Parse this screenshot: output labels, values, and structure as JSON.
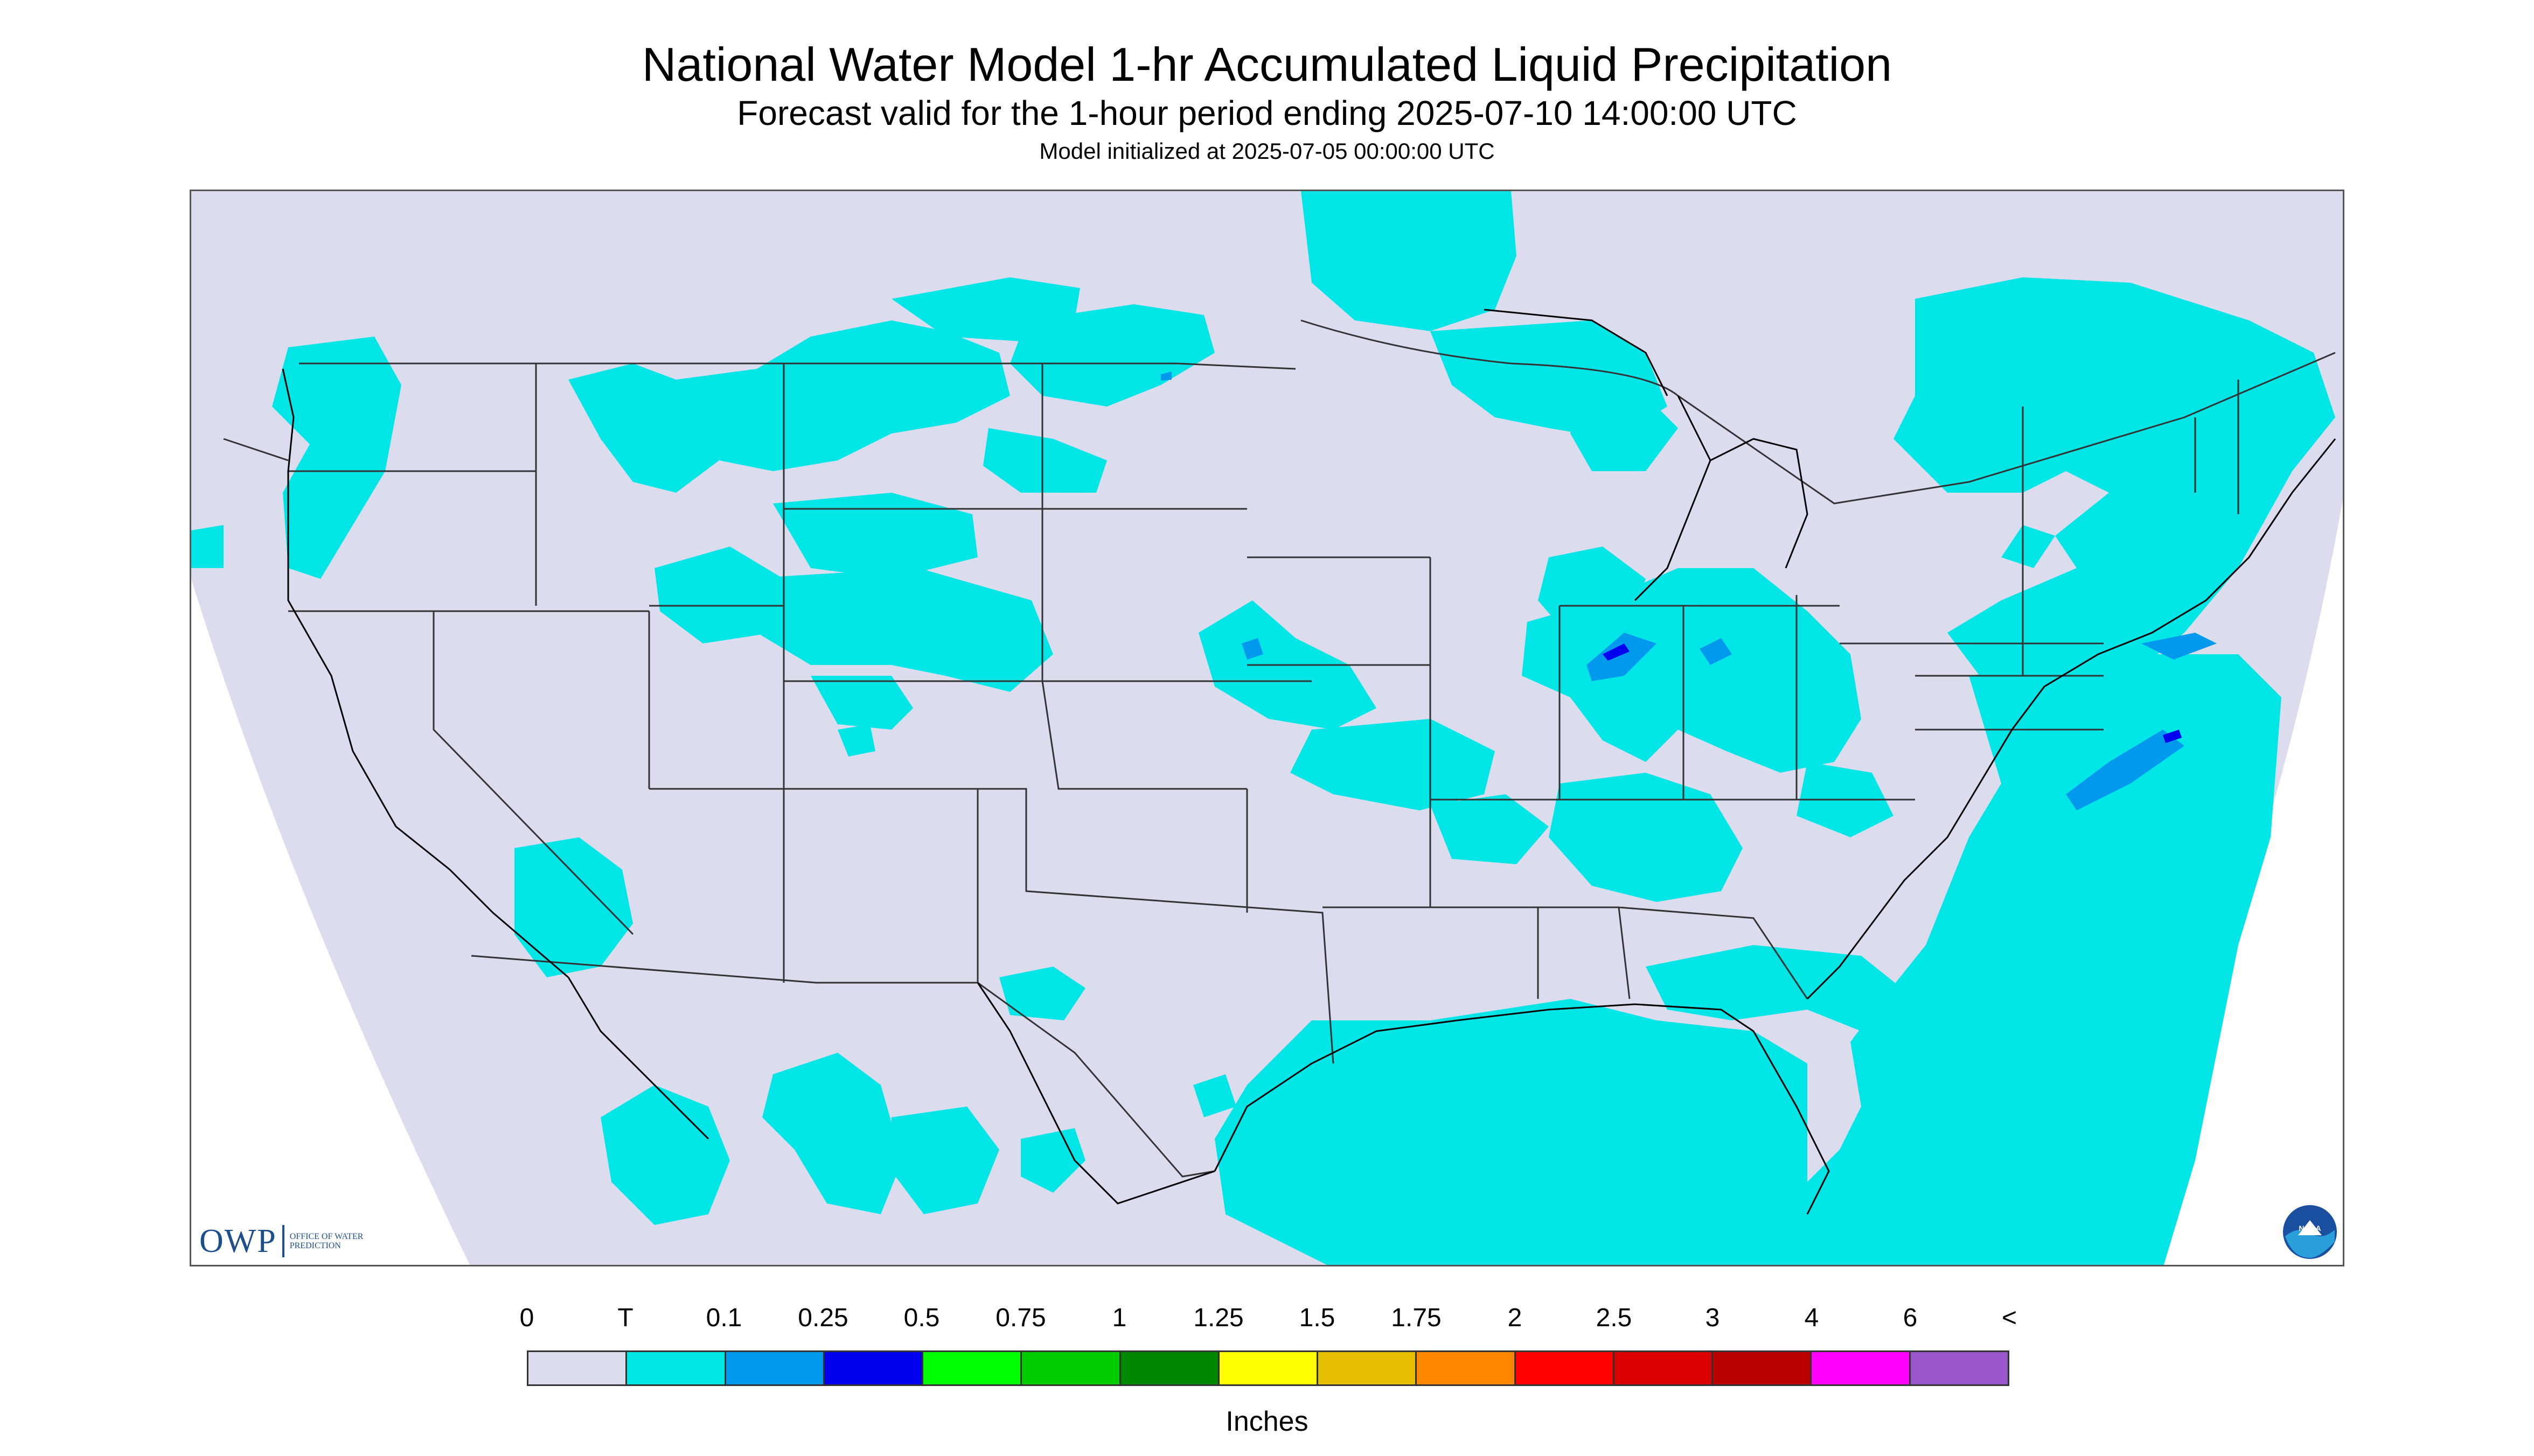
{
  "title": "National Water Model 1-hr Accumulated Liquid Precipitation",
  "subtitle": "Forecast valid for the 1-hour period ending 2025-07-10 14:00:00 UTC",
  "initialized": "Model initialized at 2025-07-05 00:00:00 UTC",
  "logo": {
    "owp_mark": "OWP",
    "owp_text": "OFFICE OF WATER PREDICTION",
    "noaa_text": "NOAA"
  },
  "colors": {
    "none": "#dcdcef",
    "trace": "#00e6e6",
    "light_blue": "#0099ee",
    "blue": "#0000ee",
    "border": "#555555"
  },
  "legend": {
    "tick_labels": [
      "0",
      "T",
      "0.1",
      "0.25",
      "0.5",
      "0.75",
      "1",
      "1.25",
      "1.5",
      "1.75",
      "2",
      "2.5",
      "3",
      "4",
      "6",
      "<"
    ],
    "colors": [
      "#dcdcef",
      "#00e6e6",
      "#0099ee",
      "#0000ee",
      "#00ff00",
      "#00cc00",
      "#008800",
      "#ffff00",
      "#e6bf00",
      "#ff8800",
      "#ff0000",
      "#dd0000",
      "#bb0000",
      "#ff00ff",
      "#9955cc"
    ],
    "units": "Inches"
  }
}
